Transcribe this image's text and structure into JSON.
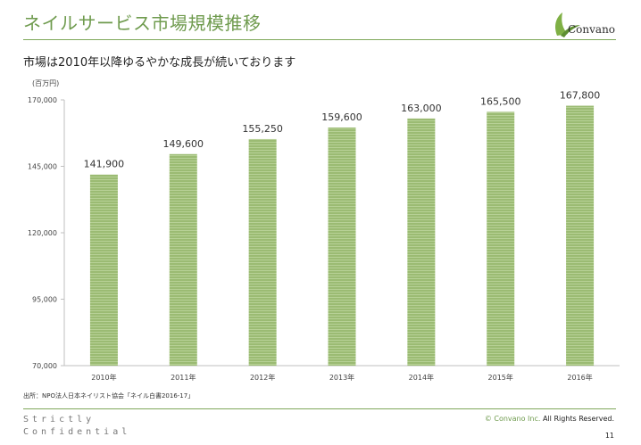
{
  "header": {
    "title": "ネイルサービス市場規模推移",
    "logo_text": "Convano"
  },
  "subtitle": "市場は2010年以降ゆるやかな成長が続いております",
  "source": "出所：NPO法人日本ネイリスト協会「ネイル白書2016-17」",
  "footer": {
    "confidential_line1": "Strictly",
    "confidential_line2": "Confidential",
    "copyright_symbol": "©",
    "copyright_brand": "Convano Inc.",
    "copyright_rest": "All Rights Reserved.",
    "page_number": "11"
  },
  "colors": {
    "accent": "#6f9b4e",
    "bar": "#9bbb73",
    "bar_stripe": "#b7d196"
  },
  "chart_data": {
    "type": "bar",
    "unit_label": "(百万円)",
    "categories": [
      "2010年",
      "2011年",
      "2012年",
      "2013年",
      "2014年",
      "2015年",
      "2016年"
    ],
    "values": [
      141900,
      149600,
      155250,
      159600,
      163000,
      165500,
      167800
    ],
    "value_labels": [
      "141,900",
      "149,600",
      "155,250",
      "159,600",
      "163,000",
      "165,500",
      "167,800"
    ],
    "ylim": [
      70000,
      170000
    ],
    "yticks": [
      70000,
      95000,
      120000,
      145000,
      170000
    ],
    "ytick_labels": [
      "70,000",
      "95,000",
      "120,000",
      "145,000",
      "170,000"
    ],
    "grid": false,
    "legend": "none"
  }
}
